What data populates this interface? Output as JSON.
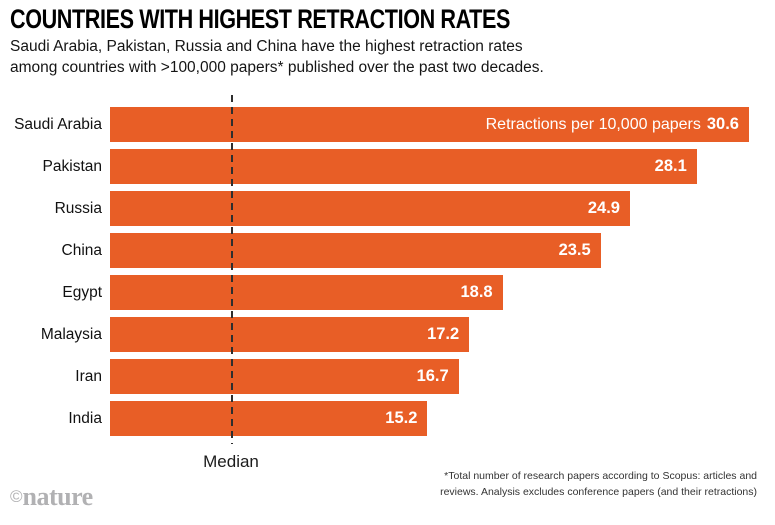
{
  "header": {
    "title": "COUNTRIES WITH HIGHEST RETRACTION RATES",
    "subtitle_lines": [
      "Saudi Arabia, Pakistan, Russia and China have the highest retraction rates",
      "among countries with >100,000 papers* published over the past two decades."
    ]
  },
  "chart_data": {
    "type": "bar",
    "orientation": "horizontal",
    "title": "COUNTRIES WITH HIGHEST RETRACTION RATES",
    "unit_label": "Retractions per 10,000 papers",
    "categories": [
      "Saudi Arabia",
      "Pakistan",
      "Russia",
      "China",
      "Egypt",
      "Malaysia",
      "Iran",
      "India"
    ],
    "values": [
      30.6,
      28.1,
      24.9,
      23.5,
      18.8,
      17.2,
      16.7,
      15.2
    ],
    "xlim": [
      0,
      30.6
    ],
    "grid": false,
    "legend": "none",
    "bar_color": "#E85E26",
    "value_label_color": "#ffffff",
    "annotation_bar_index": 0,
    "median_line": {
      "label": "Median",
      "value_estimate": 5.4,
      "style": "dashed",
      "color": "#2e2e2e"
    }
  },
  "footnote_lines": [
    "*Total number of research papers according to Scopus: articles and",
    "reviews. Analysis excludes conference papers (and their retractions)"
  ],
  "logo": {
    "copyright": "©",
    "text": "nature"
  }
}
